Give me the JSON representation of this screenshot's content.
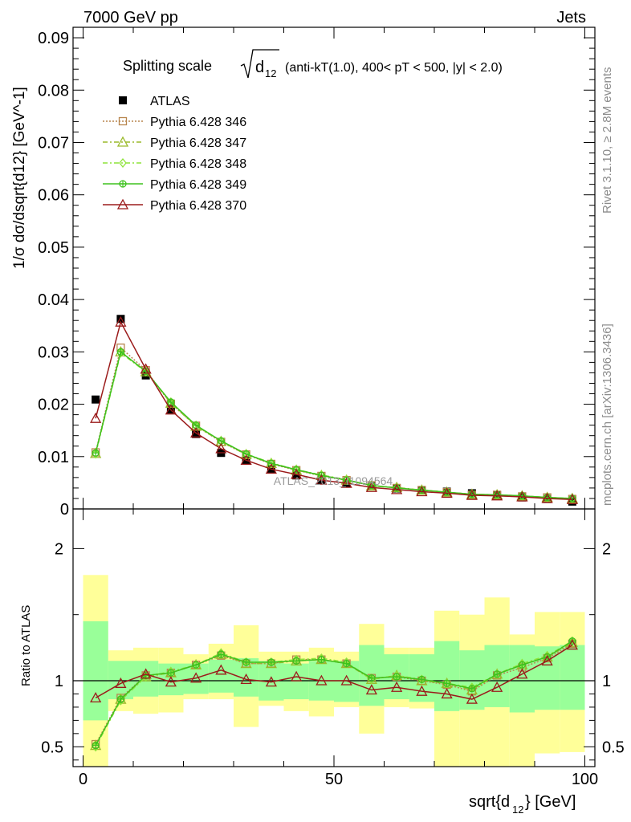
{
  "header": {
    "left": "7000 GeV pp",
    "right": "Jets"
  },
  "side_text": {
    "rivet": "Rivet 3.1.10, ≥ 2.8M events",
    "mcplots": "mcplots.cern.ch [arXiv:1306.3436]"
  },
  "watermark": "ATLAS_2013_I1094564",
  "chart_data": [
    {
      "type": "line",
      "panel": "main",
      "title": "Splitting scale",
      "title_math": "sqrt(d12)",
      "title_suffix": "(anti-kT(1.0), 400< pT < 500, |y| < 2.0)",
      "xlabel": "sqrt{d12} [GeV]",
      "ylabel": "1/σ dσ/dsqrt{d12} [GeV^-1]",
      "xlim": [
        -2,
        102
      ],
      "ylim": [
        0,
        0.092
      ],
      "yticks": [
        0,
        0.01,
        0.02,
        0.03,
        0.04,
        0.05,
        0.06,
        0.07,
        0.08,
        0.09
      ],
      "ytick_labels": [
        "0",
        "0.01",
        "0.02",
        "0.03",
        "0.04",
        "0.05",
        "0.06",
        "0.07",
        "0.08",
        "0.09"
      ],
      "legend_position": "top-left",
      "x": [
        2.5,
        7.5,
        12.5,
        17.5,
        22.5,
        27.5,
        32.5,
        37.5,
        42.5,
        47.5,
        52.5,
        57.5,
        62.5,
        67.5,
        72.5,
        77.5,
        82.5,
        87.5,
        92.5,
        97.5
      ],
      "series": [
        {
          "name": "ATLAS",
          "color": "#000000",
          "marker": "filled-square",
          "line": "none",
          "values": [
            0.0209,
            0.0363,
            0.0255,
            0.019,
            0.0143,
            0.0107,
            0.0092,
            0.0076,
            0.0064,
            0.0055,
            0.0049,
            0.0044,
            0.0039,
            0.0036,
            0.0033,
            0.003,
            0.0026,
            0.0022,
            0.0019,
            0.0014
          ]
        },
        {
          "name": "Pythia 6.428 346",
          "color": "#b8864e",
          "marker": "open-square",
          "line": "dotted",
          "values": [
            0.0108,
            0.0308,
            0.0265,
            0.0201,
            0.0159,
            0.0128,
            0.0104,
            0.0086,
            0.0074,
            0.0063,
            0.0055,
            0.0045,
            0.004,
            0.0036,
            0.0032,
            0.0027,
            0.0027,
            0.0024,
            0.0022,
            0.0019
          ]
        },
        {
          "name": "Pythia 6.428 347",
          "color": "#9aba2a",
          "marker": "open-triangle",
          "line": "dashdot",
          "values": [
            0.0106,
            0.03,
            0.0262,
            0.0202,
            0.0158,
            0.0129,
            0.0104,
            0.0087,
            0.0074,
            0.0064,
            0.0055,
            0.0044,
            0.0041,
            0.0036,
            0.0032,
            0.0028,
            0.0027,
            0.0025,
            0.0022,
            0.002
          ]
        },
        {
          "name": "Pythia 6.428 348",
          "color": "#8ee43a",
          "marker": "open-diamond",
          "line": "dashdot",
          "values": [
            0.0105,
            0.0298,
            0.0262,
            0.0204,
            0.0159,
            0.013,
            0.0105,
            0.0088,
            0.0075,
            0.0065,
            0.0056,
            0.0044,
            0.004,
            0.0036,
            0.0032,
            0.0028,
            0.0027,
            0.0025,
            0.0022,
            0.002
          ]
        },
        {
          "name": "Pythia 6.428 349",
          "color": "#3ec21e",
          "marker": "circle-cross",
          "line": "solid",
          "values": [
            0.0107,
            0.03,
            0.0263,
            0.0204,
            0.016,
            0.013,
            0.0105,
            0.0087,
            0.0075,
            0.0064,
            0.0055,
            0.0045,
            0.004,
            0.0036,
            0.0032,
            0.0028,
            0.0027,
            0.0025,
            0.0022,
            0.002
          ]
        },
        {
          "name": "Pythia 6.428 370",
          "color": "#9b1b1b",
          "marker": "open-triangle",
          "line": "solid",
          "values": [
            0.0173,
            0.0357,
            0.0267,
            0.0189,
            0.0145,
            0.0115,
            0.0093,
            0.0076,
            0.0066,
            0.0055,
            0.0049,
            0.0041,
            0.0037,
            0.0033,
            0.003,
            0.0026,
            0.0025,
            0.0023,
            0.002,
            0.0018
          ]
        }
      ]
    },
    {
      "type": "line",
      "panel": "ratio",
      "ylabel": "Ratio to ATLAS",
      "xlabel": "sqrt{d12} [GeV]",
      "xlim": [
        -2,
        102
      ],
      "ylim": [
        0.35,
        2.3
      ],
      "yticks": [
        0.5,
        1,
        2
      ],
      "ytick_labels": [
        "0.5",
        "1",
        "2"
      ],
      "xticks": [
        0,
        50,
        100
      ],
      "xtick_labels": [
        "0",
        "50",
        "100"
      ],
      "x": [
        2.5,
        7.5,
        12.5,
        17.5,
        22.5,
        27.5,
        32.5,
        37.5,
        42.5,
        47.5,
        52.5,
        57.5,
        62.5,
        67.5,
        72.5,
        77.5,
        82.5,
        87.5,
        92.5,
        97.5
      ],
      "bands": {
        "inner_color": "#99ff99",
        "outer_color": "#ffff99",
        "inner_low": [
          0.7,
          0.86,
          0.88,
          0.89,
          0.9,
          0.91,
          0.88,
          0.85,
          0.86,
          0.85,
          0.84,
          0.81,
          0.86,
          0.84,
          0.77,
          0.78,
          0.8,
          0.76,
          0.78,
          0.78
        ],
        "inner_high": [
          1.45,
          1.15,
          1.15,
          1.13,
          1.13,
          1.16,
          1.17,
          1.15,
          1.13,
          1.15,
          1.15,
          1.27,
          1.2,
          1.2,
          1.3,
          1.23,
          1.27,
          1.27,
          1.26,
          1.27
        ],
        "outer_low": [
          0.35,
          0.77,
          0.75,
          0.76,
          0.86,
          0.86,
          0.65,
          0.81,
          0.77,
          0.73,
          0.8,
          0.6,
          0.8,
          0.79,
          0.35,
          0.35,
          0.35,
          0.35,
          0.45,
          0.46
        ],
        "outer_high": [
          1.8,
          1.23,
          1.25,
          1.25,
          1.2,
          1.28,
          1.42,
          1.22,
          1.22,
          1.25,
          1.22,
          1.43,
          1.25,
          1.25,
          1.53,
          1.5,
          1.63,
          1.35,
          1.52,
          1.52
        ]
      },
      "series": [
        {
          "name": "Pythia 6.428 346",
          "color": "#b8864e",
          "marker": "open-square",
          "line": "dotted",
          "values": [
            0.52,
            0.87,
            1.04,
            1.06,
            1.12,
            1.19,
            1.13,
            1.13,
            1.16,
            1.16,
            1.13,
            1.02,
            1.03,
            1.0,
            0.97,
            0.92,
            1.04,
            1.1,
            1.17,
            1.28
          ]
        },
        {
          "name": "Pythia 6.428 347",
          "color": "#9aba2a",
          "marker": "open-triangle",
          "line": "dashdot",
          "values": [
            0.51,
            0.86,
            1.03,
            1.06,
            1.12,
            1.2,
            1.13,
            1.13,
            1.15,
            1.16,
            1.13,
            1.01,
            1.04,
            1.0,
            0.98,
            0.93,
            1.05,
            1.12,
            1.18,
            1.29
          ]
        },
        {
          "name": "Pythia 6.428 348",
          "color": "#8ee43a",
          "marker": "open-diamond",
          "line": "dashdot",
          "values": [
            0.5,
            0.85,
            1.03,
            1.07,
            1.12,
            1.21,
            1.14,
            1.14,
            1.16,
            1.17,
            1.14,
            1.01,
            1.04,
            1.01,
            0.98,
            0.95,
            1.05,
            1.13,
            1.19,
            1.3
          ]
        },
        {
          "name": "Pythia 6.428 349",
          "color": "#3ec21e",
          "marker": "circle-cross",
          "line": "solid",
          "values": [
            0.51,
            0.86,
            1.04,
            1.06,
            1.12,
            1.2,
            1.14,
            1.14,
            1.15,
            1.16,
            1.13,
            1.02,
            1.03,
            1.01,
            0.98,
            0.94,
            1.05,
            1.12,
            1.18,
            1.3
          ]
        },
        {
          "name": "Pythia 6.428 370",
          "color": "#9b1b1b",
          "marker": "open-triangle",
          "line": "solid",
          "values": [
            0.87,
            0.98,
            1.05,
            0.99,
            1.02,
            1.08,
            1.01,
            0.99,
            1.03,
            1.0,
            1.0,
            0.93,
            0.95,
            0.92,
            0.9,
            0.86,
            0.95,
            1.05,
            1.15,
            1.27
          ]
        }
      ]
    }
  ]
}
